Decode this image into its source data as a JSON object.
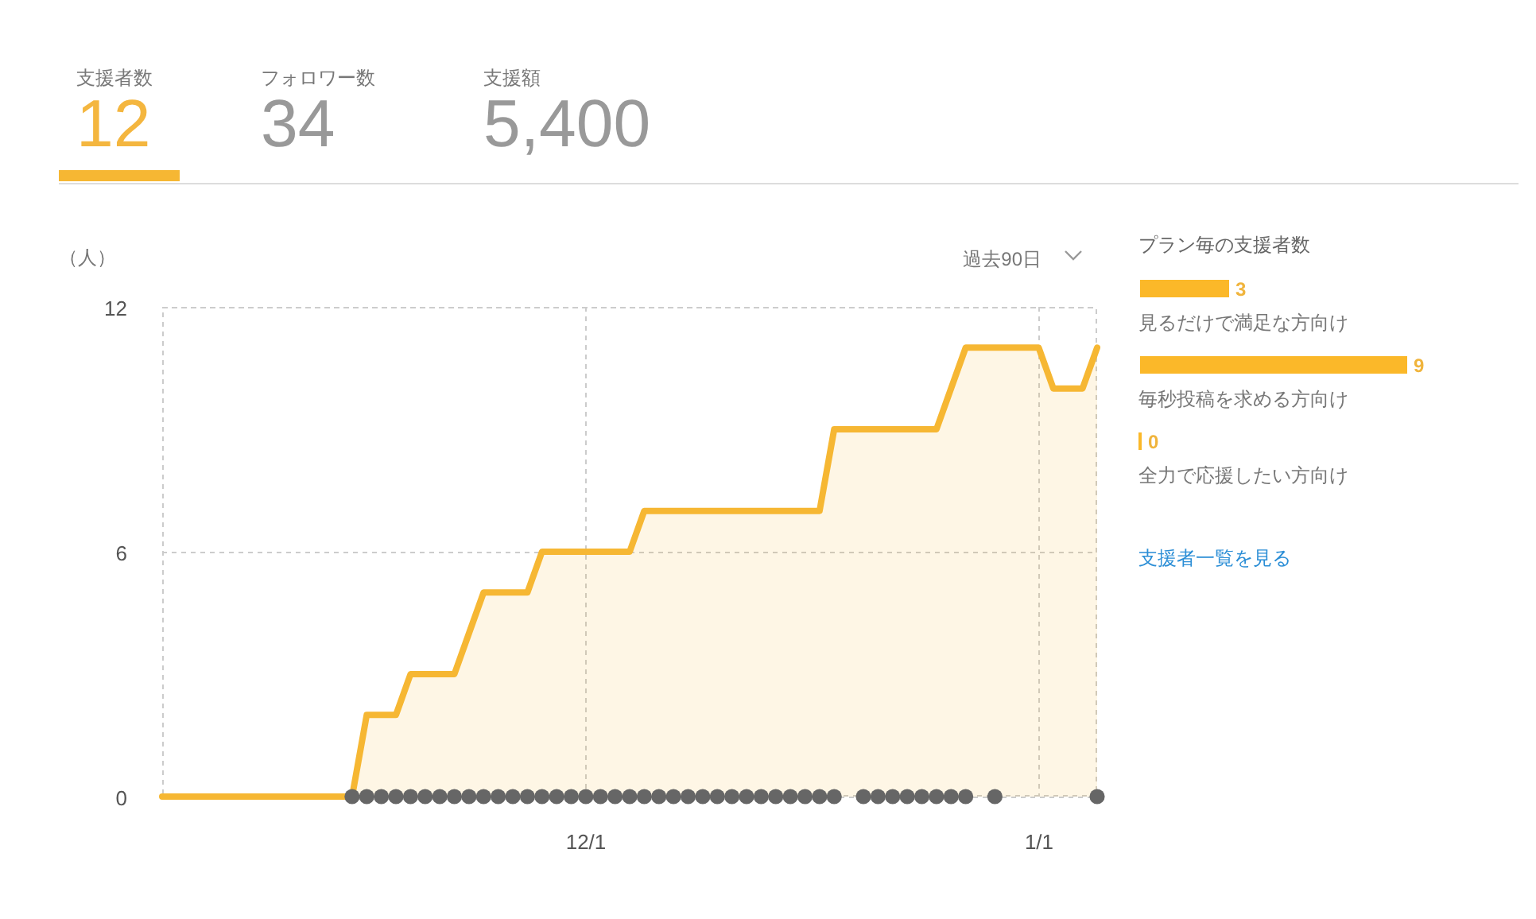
{
  "chart_data": [
    {
      "type": "other",
      "annotations": [
        "支援者数",
        "12",
        "フォロワー数",
        "34",
        "支援額",
        "5,400"
      ]
    },
    {
      "type": "area",
      "ylabel": "（人）",
      "annotations": [
        "過去90日"
      ],
      "categories": [
        null,
        null,
        null,
        null,
        null,
        null,
        null,
        null,
        null,
        null,
        null,
        null,
        null,
        null,
        null,
        null,
        null,
        null,
        null,
        null,
        null,
        null,
        null,
        null,
        null,
        null,
        null,
        null,
        null,
        "12/1",
        null,
        null,
        null,
        null,
        null,
        null,
        null,
        null,
        null,
        null,
        null,
        null,
        null,
        null,
        null,
        null,
        null,
        null,
        null,
        null,
        null,
        null,
        null,
        null,
        null,
        null,
        null,
        null,
        null,
        null,
        "1/1",
        null,
        null,
        null,
        null
      ],
      "ylim": [
        0,
        12
      ],
      "yticks": [
        0,
        6,
        12
      ],
      "grid": true,
      "series": [
        {
          "type": "area",
          "color": "#f6b733",
          "values": [
            0,
            0,
            0,
            0,
            0,
            0,
            0,
            0,
            0,
            0,
            0,
            0,
            0,
            0,
            2,
            2,
            2,
            3,
            3,
            3,
            3,
            4,
            5,
            5,
            5,
            5,
            6,
            6,
            6,
            6,
            6,
            6,
            6,
            7,
            7,
            7,
            7,
            7,
            7,
            7,
            7,
            7,
            7,
            7,
            7,
            7,
            9,
            9,
            9,
            9,
            9,
            9,
            9,
            9,
            10,
            11,
            11,
            11,
            11,
            11,
            11,
            10,
            10,
            10,
            11
          ]
        },
        {
          "type": "scatter",
          "color": "#666666",
          "marker": "circle",
          "values": [
            null,
            null,
            null,
            null,
            null,
            null,
            null,
            null,
            null,
            null,
            null,
            null,
            null,
            0,
            0,
            0,
            0,
            0,
            0,
            0,
            0,
            0,
            0,
            0,
            0,
            0,
            0,
            0,
            0,
            0,
            0,
            0,
            0,
            0,
            0,
            0,
            0,
            0,
            0,
            0,
            0,
            0,
            0,
            0,
            0,
            0,
            0,
            null,
            0,
            0,
            0,
            0,
            0,
            0,
            0,
            0,
            null,
            0,
            null,
            null,
            null,
            null,
            null,
            null,
            0
          ]
        }
      ]
    },
    {
      "type": "bar",
      "orientation": "horizontal",
      "title": "プラン毎の支援者数",
      "categories": [
        "見るだけで満足な方向け",
        "毎秒投稿を求める方向け",
        "全力で応援したい方向け"
      ],
      "values": [
        3,
        9,
        0
      ],
      "color": "#fbb829",
      "data_labels": true,
      "annotations": [
        "支援者一覧を見る"
      ]
    }
  ]
}
